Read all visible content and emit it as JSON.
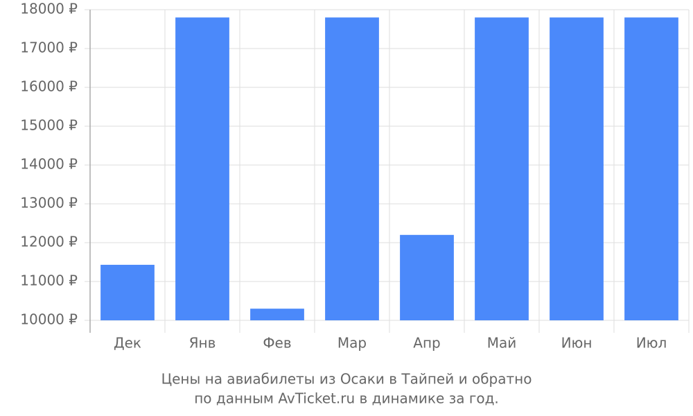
{
  "chart_data": {
    "type": "bar",
    "title": "Цены на авиабилеты из Осаки в Тайпей и обратно",
    "subtitle": "по данным AvTicket.ru в динамике за год.",
    "categories": [
      "Дек",
      "Янв",
      "Фев",
      "Мар",
      "Апр",
      "Май",
      "Июн",
      "Июл"
    ],
    "values": [
      11430,
      17800,
      10300,
      17800,
      12200,
      17800,
      17800,
      17800
    ],
    "color": "#4b89fa",
    "ylim": [
      10000,
      18000
    ],
    "yticks": [
      {
        "value": 10000,
        "label": "10000 ₽"
      },
      {
        "value": 11000,
        "label": "11000 ₽"
      },
      {
        "value": 12000,
        "label": "12000 ₽"
      },
      {
        "value": 13000,
        "label": "13000 ₽"
      },
      {
        "value": 14000,
        "label": "14000 ₽"
      },
      {
        "value": 15000,
        "label": "15000 ₽"
      },
      {
        "value": 16000,
        "label": "16000 ₽"
      },
      {
        "value": 17000,
        "label": "17000 ₽"
      },
      {
        "value": 18000,
        "label": "18000 ₽"
      }
    ],
    "grid": true
  }
}
